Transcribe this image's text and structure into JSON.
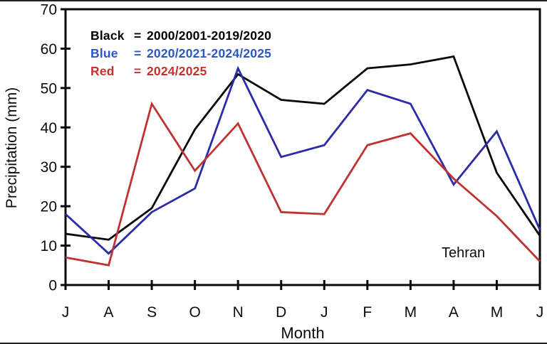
{
  "chart_data": {
    "type": "line",
    "title": "",
    "xlabel": "Month",
    "ylabel": "Precipitation (mm)",
    "annotation": "Tehran",
    "x_tick_labels": [
      "J",
      "A",
      "S",
      "O",
      "N",
      "D",
      "J",
      "F",
      "M",
      "A",
      "M",
      "J"
    ],
    "y_ticks": [
      0,
      10,
      20,
      30,
      40,
      50,
      60,
      70
    ],
    "ylim": [
      0,
      70
    ],
    "grid": false,
    "legend_position": "top-left-inside",
    "legend_equals": "=",
    "frame_color": "#0a0a0a",
    "series": [
      {
        "name": "Black",
        "label": "2000/2001-2019/2020",
        "color": "#0a0a0a",
        "text_color": "#000000",
        "values": [
          13,
          11.5,
          19.5,
          39.5,
          53.5,
          47,
          46,
          55,
          56,
          58,
          28.5,
          12.5
        ]
      },
      {
        "name": "Blue",
        "label": "2020/2021-2024/2025",
        "color": "#2b2ba8",
        "text_color": "#2d57c0",
        "values": [
          18,
          8,
          18.5,
          24.5,
          55,
          32.5,
          35.5,
          49.5,
          46,
          25.5,
          39,
          14
        ]
      },
      {
        "name": "Red",
        "label": "2024/2025",
        "color": "#c03232",
        "text_color": "#c63030",
        "values": [
          7,
          5,
          46,
          29,
          41,
          18.5,
          18,
          35.5,
          38.5,
          27,
          17.5,
          6
        ]
      }
    ]
  }
}
